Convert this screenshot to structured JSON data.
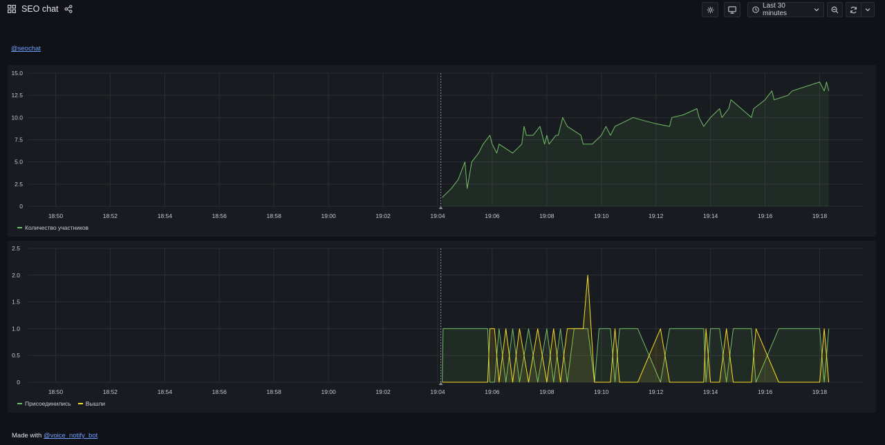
{
  "header": {
    "title": "SEO chat",
    "time_range": "Last 30 minutes"
  },
  "top_link": "@seochat",
  "footer": {
    "prefix": "Made with",
    "link": "@voice_notify_bot"
  },
  "colors": {
    "green": "#73bf69",
    "yellow": "#fade2a",
    "link": "#6e9fff"
  },
  "chart_data": [
    {
      "type": "area",
      "x_ticks": [
        "18:50",
        "18:52",
        "18:54",
        "18:56",
        "18:58",
        "19:00",
        "19:02",
        "19:04",
        "19:06",
        "19:08",
        "19:10",
        "19:12",
        "19:14",
        "19:16",
        "19:18"
      ],
      "y_ticks": [
        "15.0",
        "12.5",
        "10.0",
        "7.5",
        "5.0",
        "2.5",
        "0"
      ],
      "ylim": [
        0,
        15
      ],
      "xlim": [
        "18:49",
        "19:19:35"
      ],
      "grid": true,
      "legend_position": "bottom-left",
      "series": [
        {
          "name": "Количество участников",
          "color": "#73bf69",
          "points": [
            [
              "19:04:10",
              1
            ],
            [
              "19:04:30",
              2
            ],
            [
              "19:04:45",
              3
            ],
            [
              "19:05:00",
              5
            ],
            [
              "19:05:05",
              2
            ],
            [
              "19:05:15",
              5
            ],
            [
              "19:05:30",
              6
            ],
            [
              "19:05:40",
              7
            ],
            [
              "19:05:55",
              8
            ],
            [
              "19:06:00",
              7
            ],
            [
              "19:06:05",
              6.5
            ],
            [
              "19:06:10",
              6
            ],
            [
              "19:06:15",
              7
            ],
            [
              "19:06:45",
              6
            ],
            [
              "19:07:05",
              7
            ],
            [
              "19:07:10",
              9
            ],
            [
              "19:07:15",
              8
            ],
            [
              "19:07:30",
              8
            ],
            [
              "19:07:45",
              9
            ],
            [
              "19:07:55",
              7
            ],
            [
              "19:08:00",
              8
            ],
            [
              "19:08:05",
              7
            ],
            [
              "19:08:20",
              8
            ],
            [
              "19:08:25",
              8
            ],
            [
              "19:08:30",
              9
            ],
            [
              "19:08:35",
              10
            ],
            [
              "19:08:45",
              9
            ],
            [
              "19:09:00",
              8.5
            ],
            [
              "19:09:15",
              8
            ],
            [
              "19:09:20",
              7
            ],
            [
              "19:09:40",
              7
            ],
            [
              "19:10:00",
              8
            ],
            [
              "19:10:10",
              9
            ],
            [
              "19:10:20",
              8
            ],
            [
              "19:10:30",
              9
            ],
            [
              "19:11:10",
              10
            ],
            [
              "19:11:30",
              9.7
            ],
            [
              "19:12:00",
              9.3
            ],
            [
              "19:12:30",
              9
            ],
            [
              "19:12:35",
              10
            ],
            [
              "19:13:00",
              10.3
            ],
            [
              "19:13:30",
              11
            ],
            [
              "19:13:35",
              10
            ],
            [
              "19:13:45",
              9
            ],
            [
              "19:14:00",
              10
            ],
            [
              "19:14:10",
              10.5
            ],
            [
              "19:14:20",
              11
            ],
            [
              "19:14:25",
              10
            ],
            [
              "19:14:40",
              11
            ],
            [
              "19:14:45",
              12
            ],
            [
              "19:15:30",
              10
            ],
            [
              "19:15:35",
              11
            ],
            [
              "19:16:00",
              12
            ],
            [
              "19:16:15",
              13
            ],
            [
              "19:16:20",
              12
            ],
            [
              "19:16:50",
              12.5
            ],
            [
              "19:17:00",
              13
            ],
            [
              "19:18:00",
              14
            ],
            [
              "19:18:10",
              13
            ],
            [
              "19:18:15",
              14
            ],
            [
              "19:18:20",
              13
            ]
          ]
        }
      ]
    },
    {
      "type": "area",
      "x_ticks": [
        "18:50",
        "18:52",
        "18:54",
        "18:56",
        "18:58",
        "19:00",
        "19:02",
        "19:04",
        "19:06",
        "19:08",
        "19:10",
        "19:12",
        "19:14",
        "19:16",
        "19:18"
      ],
      "y_ticks": [
        "2.5",
        "2.0",
        "1.5",
        "1.0",
        "0.5",
        "0"
      ],
      "ylim": [
        0,
        2.5
      ],
      "xlim": [
        "18:49",
        "19:19:35"
      ],
      "grid": true,
      "legend_position": "bottom-left",
      "series": [
        {
          "name": "Присоединились",
          "color": "#73bf69",
          "points": [
            [
              "19:04:10",
              0
            ],
            [
              "19:04:12",
              1
            ],
            [
              "19:05:50",
              1
            ],
            [
              "19:05:55",
              0
            ],
            [
              "19:06:05",
              0
            ],
            [
              "19:06:15",
              1
            ],
            [
              "19:06:30",
              0
            ],
            [
              "19:06:45",
              1
            ],
            [
              "19:07:00",
              0
            ],
            [
              "19:07:20",
              1
            ],
            [
              "19:07:40",
              0
            ],
            [
              "19:08:00",
              1
            ],
            [
              "19:08:15",
              0
            ],
            [
              "19:08:30",
              1
            ],
            [
              "19:08:45",
              0
            ],
            [
              "19:09:00",
              1
            ],
            [
              "19:09:30",
              1
            ],
            [
              "19:09:45",
              0
            ],
            [
              "19:09:55",
              1
            ],
            [
              "19:10:20",
              1
            ],
            [
              "19:10:30",
              0
            ],
            [
              "19:10:40",
              1
            ],
            [
              "19:11:20",
              1
            ],
            [
              "19:12:10",
              0
            ],
            [
              "19:12:30",
              1
            ],
            [
              "19:13:45",
              1
            ],
            [
              "19:13:50",
              0
            ],
            [
              "19:14:00",
              1
            ],
            [
              "19:14:20",
              1
            ],
            [
              "19:14:35",
              0
            ],
            [
              "19:14:50",
              1
            ],
            [
              "19:15:30",
              1
            ],
            [
              "19:15:40",
              0
            ],
            [
              "19:16:30",
              1
            ],
            [
              "19:16:40",
              1
            ],
            [
              "19:17:10",
              1
            ],
            [
              "19:18:00",
              1
            ],
            [
              "19:18:10",
              0
            ],
            [
              "19:18:20",
              1
            ]
          ]
        },
        {
          "name": "Вышли",
          "color": "#fade2a",
          "points": [
            [
              "19:04:10",
              0
            ],
            [
              "19:05:50",
              0
            ],
            [
              "19:05:55",
              1
            ],
            [
              "19:06:05",
              1
            ],
            [
              "19:06:15",
              0
            ],
            [
              "19:06:30",
              1
            ],
            [
              "19:06:45",
              0
            ],
            [
              "19:07:00",
              1
            ],
            [
              "19:07:20",
              0
            ],
            [
              "19:07:40",
              1
            ],
            [
              "19:08:00",
              0
            ],
            [
              "19:08:15",
              1
            ],
            [
              "19:08:30",
              0
            ],
            [
              "19:08:45",
              1
            ],
            [
              "19:09:20",
              1
            ],
            [
              "19:09:30",
              2
            ],
            [
              "19:09:45",
              0
            ],
            [
              "19:10:20",
              0
            ],
            [
              "19:10:30",
              1
            ],
            [
              "19:10:40",
              0
            ],
            [
              "19:11:20",
              0
            ],
            [
              "19:12:10",
              1
            ],
            [
              "19:12:30",
              0
            ],
            [
              "19:13:45",
              0
            ],
            [
              "19:13:50",
              1
            ],
            [
              "19:14:00",
              0
            ],
            [
              "19:14:20",
              0
            ],
            [
              "19:14:35",
              1
            ],
            [
              "19:14:50",
              0
            ],
            [
              "19:15:30",
              0
            ],
            [
              "19:15:40",
              1
            ],
            [
              "19:16:30",
              0
            ],
            [
              "19:18:00",
              0
            ],
            [
              "19:18:10",
              1
            ],
            [
              "19:18:20",
              0
            ]
          ]
        }
      ]
    }
  ]
}
